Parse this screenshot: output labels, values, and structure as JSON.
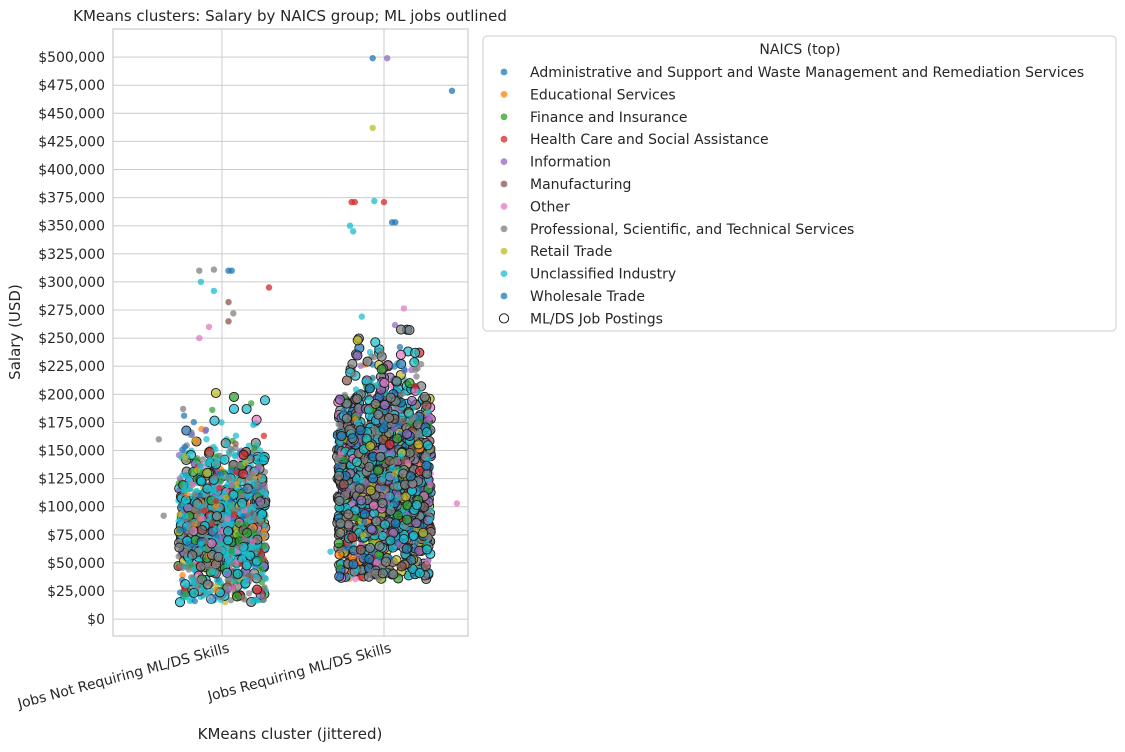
{
  "chart_data": {
    "type": "scatter",
    "title": "KMeans clusters: Salary by NAICS group; ML jobs outlined",
    "xlabel": "KMeans cluster (jittered)",
    "ylabel": "Salary (USD)",
    "categories": [
      "Jobs Not Requiring ML/DS Skills",
      "Jobs Requiring ML/DS Skills"
    ],
    "ylim": [
      -15000,
      525000
    ],
    "yticks": [
      0,
      25000,
      50000,
      75000,
      100000,
      125000,
      150000,
      175000,
      200000,
      225000,
      250000,
      275000,
      300000,
      325000,
      350000,
      375000,
      400000,
      425000,
      450000,
      475000,
      500000
    ],
    "ytick_labels": [
      "$0",
      "$25,000",
      "$50,000",
      "$75,000",
      "$100,000",
      "$125,000",
      "$150,000",
      "$175,000",
      "$200,000",
      "$225,000",
      "$250,000",
      "$275,000",
      "$300,000",
      "$325,000",
      "$350,000",
      "$375,000",
      "$400,000",
      "$425,000",
      "$450,000",
      "$475,000",
      "$500,000"
    ],
    "grid": true,
    "legend_title": "NAICS (top)",
    "legend_position": "outside-right-top",
    "series": [
      {
        "name": "Administrative and Support and Waste Management and Remediation Services",
        "color": "#1f77b4"
      },
      {
        "name": "Educational Services",
        "color": "#ff7f0e"
      },
      {
        "name": "Finance and Insurance",
        "color": "#2ca02c"
      },
      {
        "name": "Health Care and Social Assistance",
        "color": "#d62728"
      },
      {
        "name": "Information",
        "color": "#9467bd"
      },
      {
        "name": "Manufacturing",
        "color": "#8c564b"
      },
      {
        "name": "Other",
        "color": "#e377c2"
      },
      {
        "name": "Professional, Scientific, and Technical Services",
        "color": "#7f7f7f"
      },
      {
        "name": "Retail Trade",
        "color": "#bcbd22"
      },
      {
        "name": "Unclassified Industry",
        "color": "#17becf"
      },
      {
        "name": "Wholesale Trade",
        "color": "#1f77b4"
      }
    ],
    "outline_series": {
      "name": "ML/DS Job Postings",
      "color": "#000000"
    },
    "clusters": [
      {
        "category": "Jobs Not Requiring ML/DS Skills",
        "center_salary": 85000,
        "spread_salary": 35000,
        "min_salary": 15000,
        "max_salary": 312000,
        "outliers": [
          {
            "x": -0.05,
            "y": 311000,
            "series": "Professional, Scientific, and Technical Services"
          },
          {
            "x": 0.04,
            "y": 310000,
            "series": "Administrative and Support and Waste Management and Remediation Services"
          },
          {
            "x": 0.06,
            "y": 310000,
            "series": "Administrative and Support and Waste Management and Remediation Services"
          },
          {
            "x": -0.14,
            "y": 310000,
            "series": "Professional, Scientific, and Technical Services"
          },
          {
            "x": -0.13,
            "y": 300000,
            "series": "Unclassified Industry"
          },
          {
            "x": 0.29,
            "y": 295000,
            "series": "Health Care and Social Assistance"
          },
          {
            "x": -0.05,
            "y": 292000,
            "series": "Unclassified Industry"
          },
          {
            "x": 0.04,
            "y": 282000,
            "series": "Manufacturing"
          },
          {
            "x": 0.07,
            "y": 272000,
            "series": "Professional, Scientific, and Technical Services"
          },
          {
            "x": 0.04,
            "y": 265000,
            "series": "Manufacturing"
          },
          {
            "x": -0.08,
            "y": 260000,
            "series": "Other"
          },
          {
            "x": -0.14,
            "y": 250000,
            "series": "Other"
          },
          {
            "x": -0.39,
            "y": 160000,
            "series": "Professional, Scientific, and Technical Services"
          },
          {
            "x": -0.24,
            "y": 187000,
            "series": "Professional, Scientific, and Technical Services"
          },
          {
            "x": -0.36,
            "y": 92000,
            "series": "Professional, Scientific, and Technical Services"
          },
          {
            "x": 0.27,
            "y": 36000,
            "series": "Unclassified Industry"
          },
          {
            "x": 0.24,
            "y": 45000,
            "series": "Finance and Insurance"
          },
          {
            "x": 0.19,
            "y": 16000,
            "series": "Unclassified Industry"
          },
          {
            "x": -0.22,
            "y": 30000,
            "series": "Unclassified Industry"
          }
        ]
      },
      {
        "category": "Jobs Requiring ML/DS Skills",
        "center_salary": 125000,
        "spread_salary": 48000,
        "min_salary": 35000,
        "max_salary": 500000,
        "outliers": [
          {
            "x": -0.07,
            "y": 499000,
            "series": "Administrative and Support and Waste Management and Remediation Services"
          },
          {
            "x": 0.02,
            "y": 499000,
            "series": "Information"
          },
          {
            "x": 0.42,
            "y": 470000,
            "series": "Wholesale Trade"
          },
          {
            "x": -0.07,
            "y": 437000,
            "series": "Retail Trade"
          },
          {
            "x": -0.2,
            "y": 371000,
            "series": "Health Care and Social Assistance"
          },
          {
            "x": -0.18,
            "y": 371000,
            "series": "Health Care and Social Assistance"
          },
          {
            "x": 0.0,
            "y": 371000,
            "series": "Health Care and Social Assistance"
          },
          {
            "x": -0.06,
            "y": 372000,
            "series": "Unclassified Industry"
          },
          {
            "x": -0.21,
            "y": 350000,
            "series": "Unclassified Industry"
          },
          {
            "x": -0.19,
            "y": 345000,
            "series": "Unclassified Industry"
          },
          {
            "x": 0.05,
            "y": 353000,
            "series": "Administrative and Support and Waste Management and Remediation Services"
          },
          {
            "x": 0.07,
            "y": 353000,
            "series": "Administrative and Support and Waste Management and Remediation Services"
          },
          {
            "x": -0.33,
            "y": 60000,
            "series": "Unclassified Industry"
          },
          {
            "x": 0.45,
            "y": 103000,
            "series": "Other"
          }
        ]
      }
    ]
  }
}
